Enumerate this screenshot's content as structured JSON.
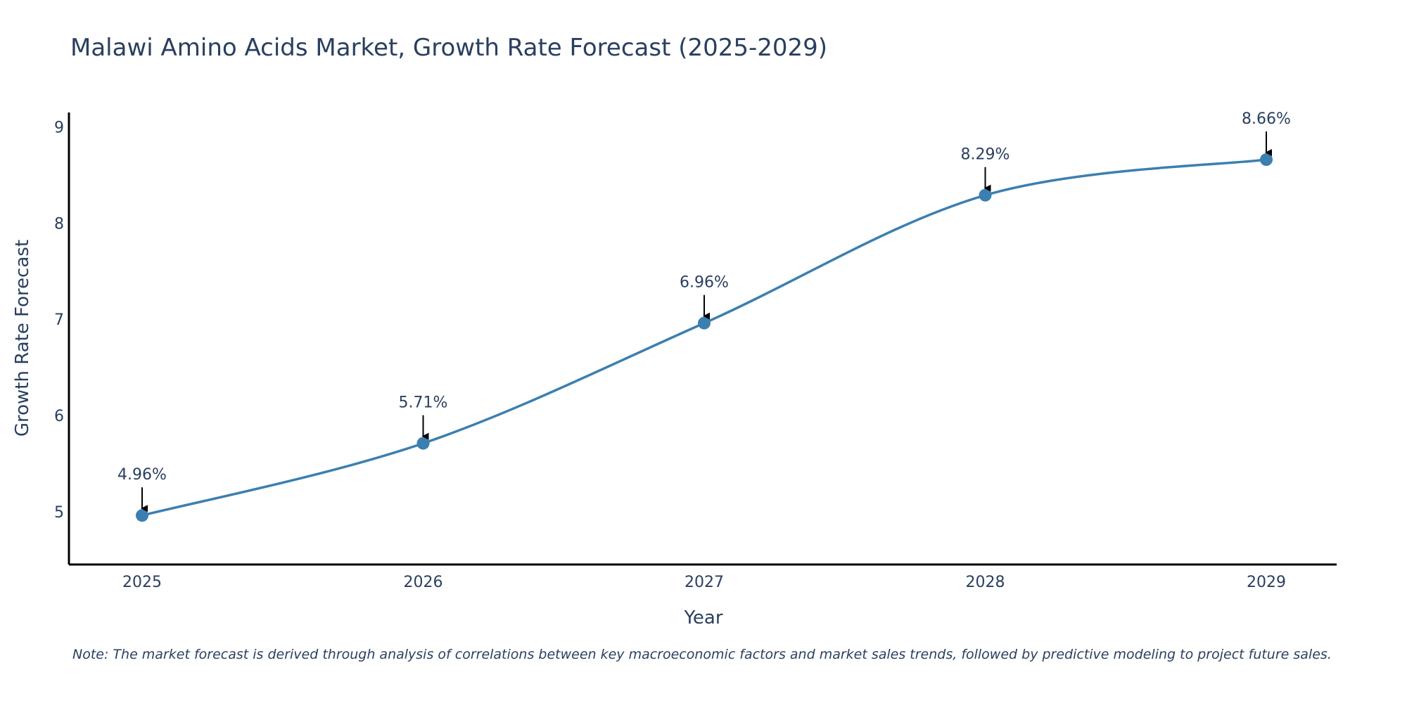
{
  "chart_data": {
    "type": "line",
    "title": "Malawi Amino Acids Market, Growth Rate Forecast (2025-2029)",
    "xlabel": "Year",
    "ylabel": "Growth Rate Forecast",
    "categories": [
      "2025",
      "2026",
      "2027",
      "2028",
      "2029"
    ],
    "series": [
      {
        "name": "Growth Rate Forecast",
        "values": [
          4.96,
          5.71,
          6.96,
          8.29,
          8.66
        ],
        "labels": [
          "4.96%",
          "5.71%",
          "6.96%",
          "8.29%",
          "8.66%"
        ],
        "color": "#3b7fb0"
      }
    ],
    "ylim": [
      4.45,
      9.15
    ],
    "yticks": [
      5,
      6,
      7,
      8,
      9
    ],
    "grid": false,
    "legend": "none",
    "annotation_arrow_color": "#000000"
  },
  "note": "Note: The market forecast is derived through analysis of correlations between key macroeconomic factors and market sales trends, followed by predictive modeling to project future sales."
}
